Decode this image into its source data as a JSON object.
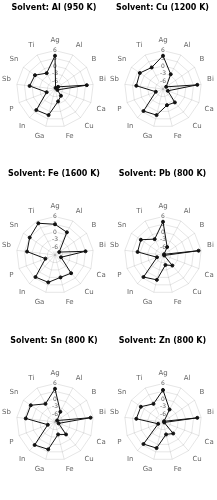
{
  "chart_data": [
    {
      "type": "radar",
      "title": "Solvent: Al (950 K)",
      "categories": [
        "Ag",
        "Al",
        "B",
        "Bi",
        "Ca",
        "Cu",
        "Fe",
        "Ga",
        "In",
        "P",
        "Sb",
        "Sn",
        "Ti"
      ],
      "values": [
        4.0,
        -8.5,
        -7.5,
        3.5,
        -8.0,
        -5.5,
        -4.0,
        1.5,
        2.0,
        -5.5,
        1.0,
        0.5,
        -2.0
      ],
      "color": "#111111",
      "ylim": [
        -9,
        6
      ],
      "yticks": [
        -6,
        -3,
        0,
        3,
        6
      ],
      "grid": true
    },
    {
      "type": "radar",
      "title": "Solvent: Cu (1200 K)",
      "categories": [
        "Ag",
        "Al",
        "B",
        "Bi",
        "Ca",
        "Cu",
        "Fe",
        "Ga",
        "In",
        "P",
        "Sb",
        "Sn",
        "Ti"
      ],
      "values": [
        4.0,
        -2.5,
        -7.5,
        4.5,
        -7.0,
        -2.0,
        -2.5,
        1.5,
        2.5,
        -6.0,
        1.5,
        2.0,
        0.5
      ],
      "color": "#111111",
      "ylim": [
        -9,
        6
      ],
      "yticks": [
        -6,
        -3,
        0,
        3,
        6
      ],
      "grid": true
    },
    {
      "type": "radar",
      "title": "Solvent: Fe (1600 K)",
      "categories": [
        "Ag",
        "Al",
        "B",
        "Bi",
        "Ca",
        "Cu",
        "Fe",
        "Ga",
        "In",
        "P",
        "Sb",
        "Sn",
        "Ti"
      ],
      "values": [
        3.0,
        1.0,
        -7.0,
        3.0,
        -6.5,
        0.5,
        0.0,
        2.0,
        2.5,
        -5.0,
        2.0,
        3.0,
        5.0
      ],
      "color": "#111111",
      "ylim": [
        -9,
        6
      ],
      "yticks": [
        -6,
        -3,
        0,
        3,
        6
      ],
      "grid": true
    },
    {
      "type": "radar",
      "title": "Solvent: Pb (800 K)",
      "categories": [
        "Ag",
        "Al",
        "B",
        "Bi",
        "Ca",
        "Cu",
        "Fe",
        "Ga",
        "In",
        "P",
        "Sb",
        "Sn",
        "Ti"
      ],
      "values": [
        4.0,
        -5.5,
        -8.5,
        5.0,
        -8.5,
        -3.5,
        -5.0,
        1.0,
        2.5,
        -6.5,
        1.0,
        1.5,
        -2.0
      ],
      "color": "#111111",
      "ylim": [
        -9,
        6
      ],
      "yticks": [
        -6,
        -3,
        0,
        3,
        6
      ],
      "grid": true
    },
    {
      "type": "radar",
      "title": "Solvent: Sn (800 K)",
      "categories": [
        "Ag",
        "Al",
        "B",
        "Bi",
        "Ca",
        "Cu",
        "Fe",
        "Ga",
        "In",
        "P",
        "Sb",
        "Sn",
        "Ti"
      ],
      "values": [
        4.0,
        -4.5,
        -8.0,
        5.0,
        -7.5,
        -2.5,
        -4.0,
        2.0,
        3.0,
        -6.0,
        2.5,
        2.5,
        -1.0
      ],
      "color": "#111111",
      "ylim": [
        -9,
        6
      ],
      "yticks": [
        -6,
        -3,
        0,
        3,
        6
      ],
      "grid": true
    },
    {
      "type": "radar",
      "title": "Solvent: Zn (800 K)",
      "categories": [
        "Ag",
        "Al",
        "B",
        "Bi",
        "Ca",
        "Cu",
        "Fe",
        "Ga",
        "In",
        "P",
        "Sb",
        "Sn",
        "Ti"
      ],
      "values": [
        3.5,
        -3.5,
        -8.5,
        4.5,
        -8.5,
        -3.0,
        -4.0,
        1.5,
        2.5,
        -7.0,
        1.5,
        1.5,
        -1.0
      ],
      "color": "#111111",
      "ylim": [
        -9,
        6
      ],
      "yticks": [
        -6,
        -3,
        0,
        3,
        6
      ],
      "grid": true
    }
  ]
}
